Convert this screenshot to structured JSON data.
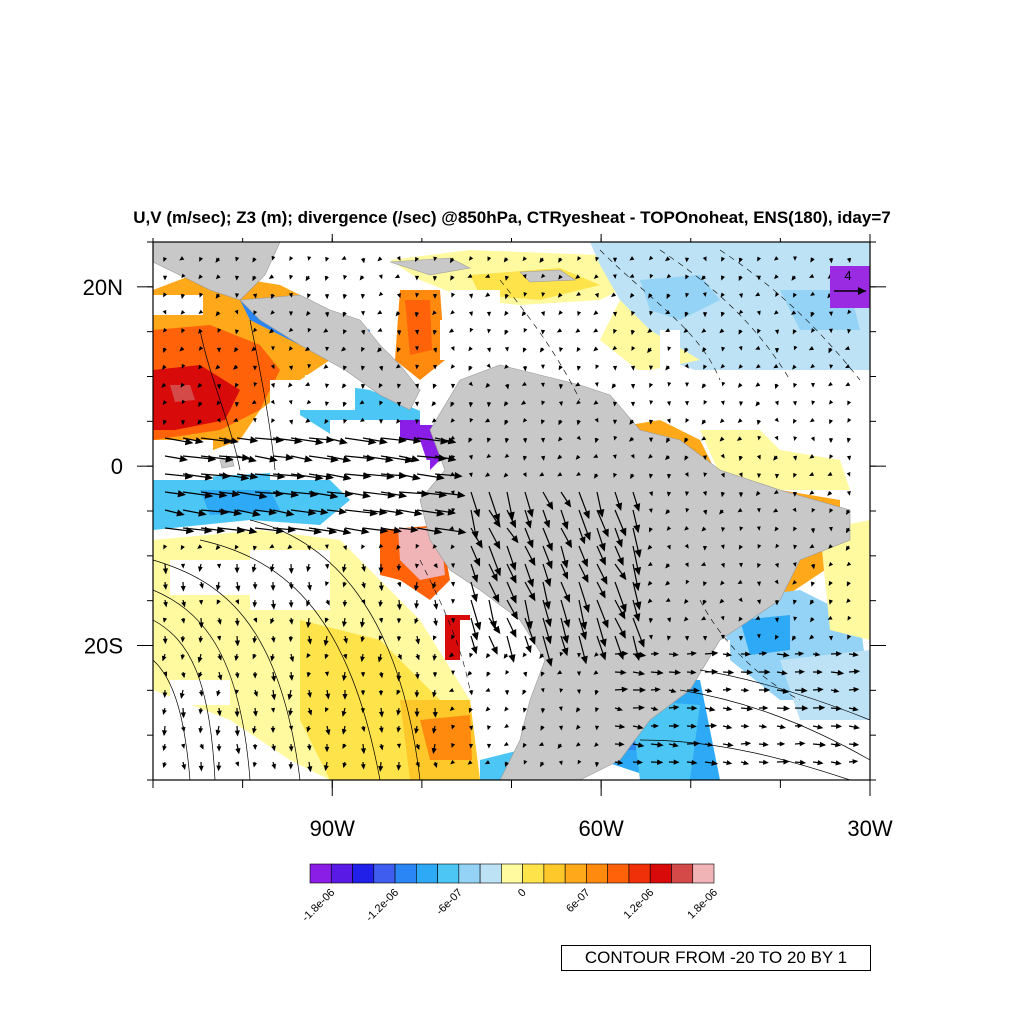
{
  "title": "U,V (m/sec); Z3 (m); divergence (/sec) @850hPa, CTRyesheat - TOPOnoheat, ENS(180), iday=7",
  "map": {
    "lon_range": [
      -110,
      -30
    ],
    "lat_range": [
      -35,
      25
    ],
    "lon_ticks": [
      {
        "value": -90,
        "label": "90W"
      },
      {
        "value": -60,
        "label": "60W"
      },
      {
        "value": -30,
        "label": "30W"
      }
    ],
    "lat_ticks": [
      {
        "value": 20,
        "label": "20N"
      },
      {
        "value": 0,
        "label": "0"
      },
      {
        "value": -20,
        "label": "20S"
      }
    ]
  },
  "reference_vector": {
    "label": "4",
    "units": "m/sec",
    "color": "#9a2be2"
  },
  "colorbar": {
    "colors": [
      "#8a1ee6",
      "#5a1ae6",
      "#2020e8",
      "#3f5ef0",
      "#2b86f5",
      "#2ea9f5",
      "#4cc6f5",
      "#94d3f5",
      "#bde2f5",
      "#fffaa0",
      "#ffe34a",
      "#ffc82a",
      "#ffa81a",
      "#ff8a0e",
      "#ff6208",
      "#f03008",
      "#d80a0a",
      "#d44a48",
      "#f0b3b6"
    ],
    "labels": [
      {
        "text": "-1.8e-06",
        "value": -1.8e-06
      },
      {
        "text": "-1.2e-06",
        "value": -1.2e-06
      },
      {
        "text": "-6e-07",
        "value": -6e-07
      },
      {
        "text": "0",
        "value": 0
      },
      {
        "text": "6e-07",
        "value": 6e-07
      },
      {
        "text": "1.2e-06",
        "value": 1.2e-06
      },
      {
        "text": "1.8e-06",
        "value": 1.8e-06
      }
    ]
  },
  "contour_info": "CONTOUR FROM -20 TO 20 BY 1"
}
